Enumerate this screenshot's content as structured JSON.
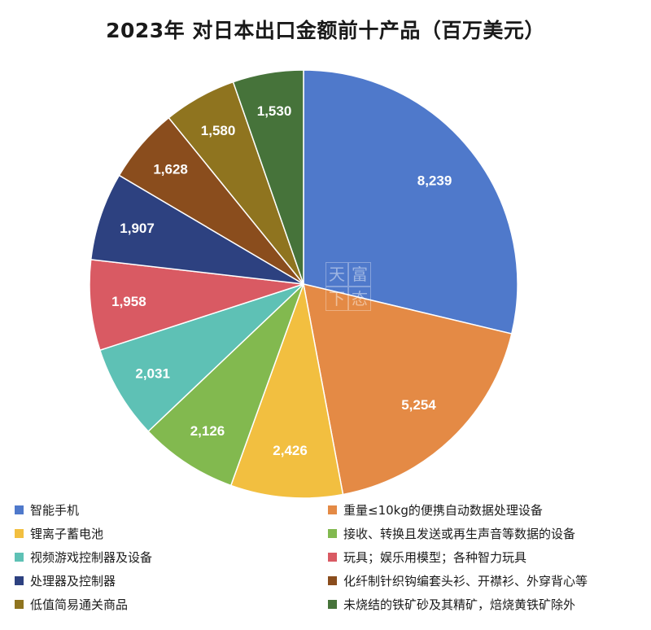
{
  "chart_data": {
    "type": "pie",
    "title": "2023年 对日本出口金额前十产品（百万美元）",
    "categories": [
      "智能手机",
      "重量≤10kg的便携自动数据处理设备",
      "锂离子蓄电池",
      "接收、转换且发送或再生声音等数据的设备",
      "视频游戏控制器及设备",
      "玩具；娱乐用模型；各种智力玩具",
      "处理器及控制器",
      "化纤制针织钩编套头衫、开襟衫、外穿背心等",
      "低值简易通关商品",
      "未烧结的铁矿砂及其精矿，焙烧黄铁矿除外"
    ],
    "values": [
      8239,
      5254,
      2426,
      2126,
      2031,
      1958,
      1907,
      1628,
      1580,
      1530
    ],
    "value_labels": [
      "8,239",
      "5,254",
      "2,426",
      "2,126",
      "2,031",
      "1,958",
      "1,907",
      "1,628",
      "1,580",
      "1,530"
    ],
    "colors": [
      "#4f79cb",
      "#e48a45",
      "#f2bf40",
      "#82b94f",
      "#5ec1b5",
      "#d95a63",
      "#2d4180",
      "#8a4d1d",
      "#8f741f",
      "#46733a"
    ],
    "legend_placement": "bottom",
    "start_angle_deg": 0,
    "direction": "clockwise"
  },
  "watermark": [
    "天",
    "富",
    "下",
    "态"
  ]
}
